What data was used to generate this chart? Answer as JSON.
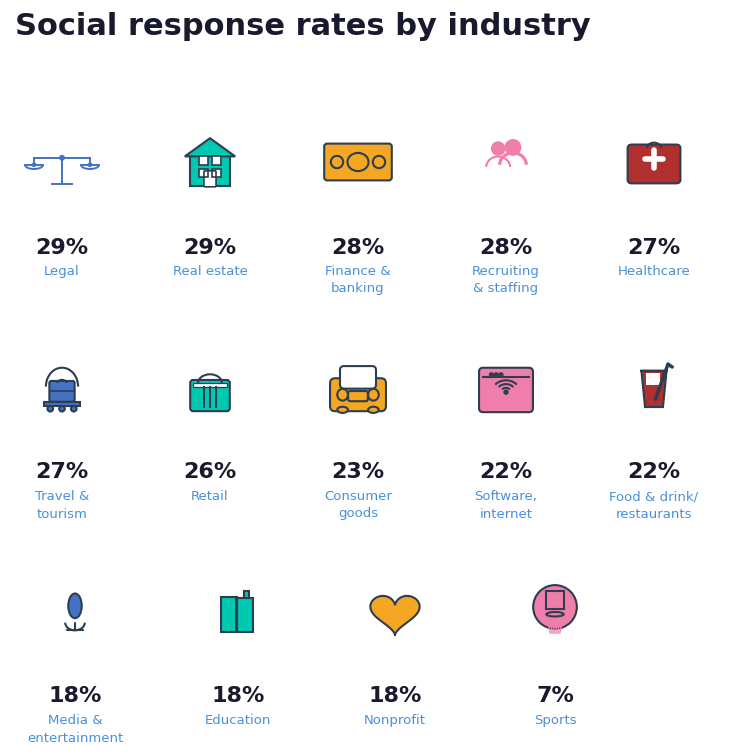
{
  "title": "Social response rates by industry",
  "title_fontsize": 22,
  "title_color": "#1a1a2e",
  "background_color": "#ffffff",
  "label_color": "#4a90d9",
  "pct_color": "#1a1a2e",
  "rows": [
    {
      "items": [
        {
          "pct": "29%",
          "label": "Legal",
          "icon": "legal"
        },
        {
          "pct": "29%",
          "label": "Real estate",
          "icon": "realestate"
        },
        {
          "pct": "28%",
          "label": "Finance &\nbanking",
          "icon": "finance"
        },
        {
          "pct": "28%",
          "label": "Recruiting\n& staffing",
          "icon": "recruiting"
        },
        {
          "pct": "27%",
          "label": "Healthcare",
          "icon": "healthcare"
        }
      ]
    },
    {
      "items": [
        {
          "pct": "27%",
          "label": "Travel &\ntourism",
          "icon": "travel"
        },
        {
          "pct": "26%",
          "label": "Retail",
          "icon": "retail"
        },
        {
          "pct": "23%",
          "label": "Consumer\ngoods",
          "icon": "consumer"
        },
        {
          "pct": "22%",
          "label": "Software,\ninternet",
          "icon": "software"
        },
        {
          "pct": "22%",
          "label": "Food & drink/\nrestaurants",
          "icon": "food"
        }
      ]
    },
    {
      "items": [
        {
          "pct": "18%",
          "label": "Media &\nentertainment",
          "icon": "media"
        },
        {
          "pct": "18%",
          "label": "Education",
          "icon": "education"
        },
        {
          "pct": "18%",
          "label": "Nonprofit",
          "icon": "nonprofit"
        },
        {
          "pct": "7%",
          "label": "Sports",
          "icon": "sports"
        }
      ]
    }
  ],
  "icon_colors": {
    "blue": "#4472c4",
    "teal": "#00c9b1",
    "gold": "#f5a623",
    "pink": "#f07eaa",
    "red": "#b03030",
    "dark": "#2c3e50",
    "light_blue": "#4472c4",
    "dark_blue": "#2c4a8a"
  }
}
